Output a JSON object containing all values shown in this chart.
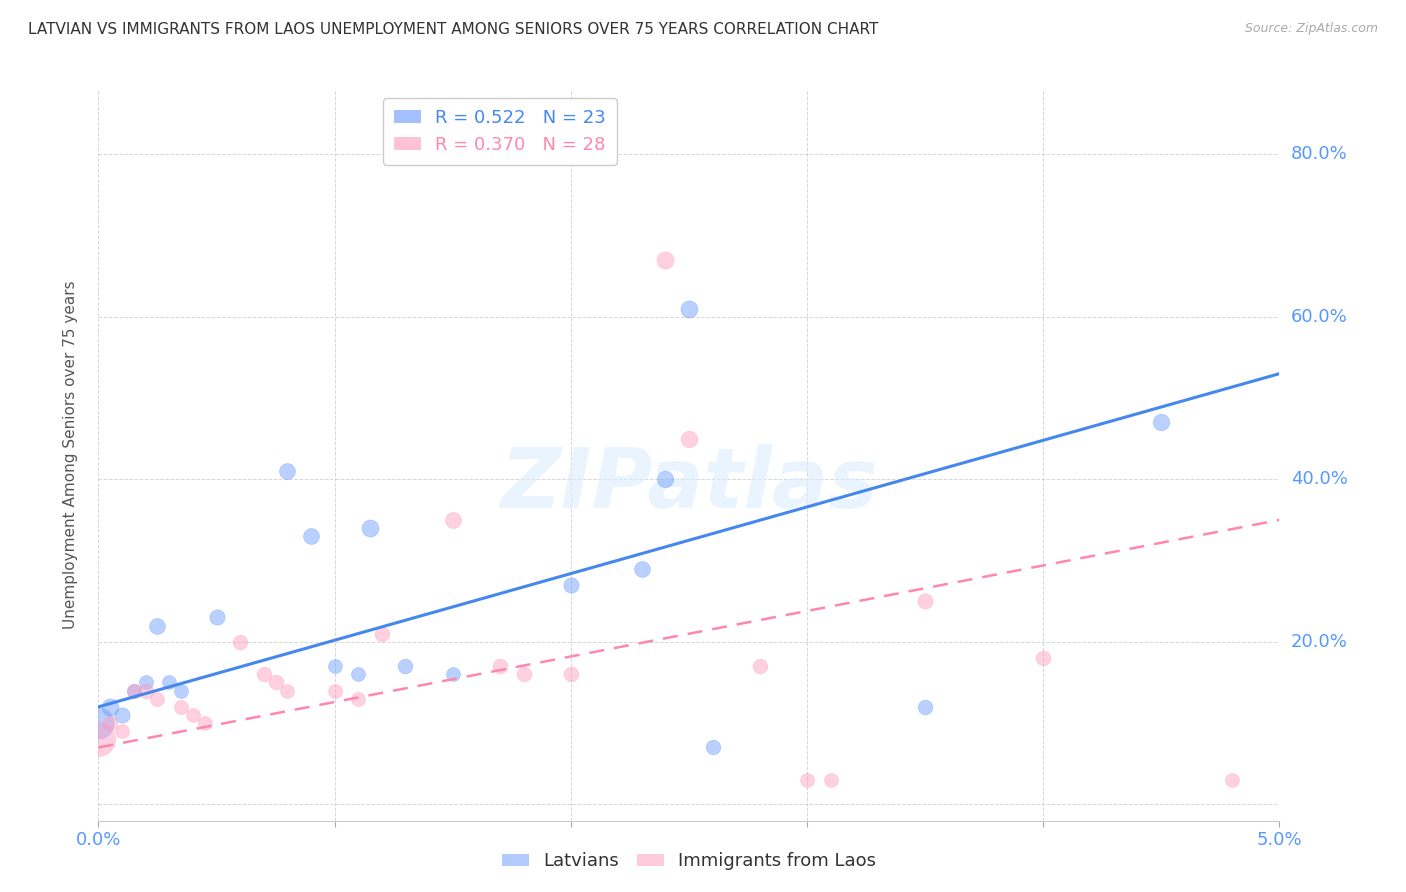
{
  "title": "LATVIAN VS IMMIGRANTS FROM LAOS UNEMPLOYMENT AMONG SENIORS OVER 75 YEARS CORRELATION CHART",
  "source": "Source: ZipAtlas.com",
  "ylabel": "Unemployment Among Seniors over 75 years",
  "xlim": [
    0.0,
    5.0
  ],
  "ylim": [
    -2.0,
    88.0
  ],
  "yticks": [
    0,
    20,
    40,
    60,
    80
  ],
  "ytick_labels": [
    "",
    "20.0%",
    "40.0%",
    "60.0%",
    "80.0%"
  ],
  "xticks": [
    0.0,
    1.0,
    2.0,
    3.0,
    4.0,
    5.0
  ],
  "background_color": "#ffffff",
  "grid_color": "#cccccc",
  "blue_color": "#6699ff",
  "pink_color": "#ff99bb",
  "title_color": "#333333",
  "axis_label_color": "#5599ff",
  "legend_R1": "R = 0.522",
  "legend_N1": "N = 23",
  "legend_R2": "R = 0.370",
  "legend_N2": "N = 28",
  "latvian_points": [
    [
      0.0,
      10.0,
      500
    ],
    [
      0.05,
      12.0,
      150
    ],
    [
      0.1,
      11.0,
      120
    ],
    [
      0.15,
      14.0,
      100
    ],
    [
      0.2,
      15.0,
      100
    ],
    [
      0.25,
      22.0,
      130
    ],
    [
      0.3,
      15.0,
      100
    ],
    [
      0.35,
      14.0,
      100
    ],
    [
      0.5,
      23.0,
      120
    ],
    [
      0.8,
      41.0,
      130
    ],
    [
      0.9,
      33.0,
      130
    ],
    [
      1.0,
      17.0,
      100
    ],
    [
      1.1,
      16.0,
      100
    ],
    [
      1.15,
      34.0,
      150
    ],
    [
      1.3,
      17.0,
      110
    ],
    [
      1.5,
      16.0,
      100
    ],
    [
      2.0,
      27.0,
      120
    ],
    [
      2.3,
      29.0,
      130
    ],
    [
      2.4,
      40.0,
      140
    ],
    [
      2.5,
      61.0,
      150
    ],
    [
      2.6,
      7.0,
      110
    ],
    [
      3.5,
      12.0,
      110
    ],
    [
      4.5,
      47.0,
      140
    ]
  ],
  "laos_points": [
    [
      0.0,
      8.0,
      600
    ],
    [
      0.05,
      10.0,
      110
    ],
    [
      0.1,
      9.0,
      100
    ],
    [
      0.15,
      14.0,
      110
    ],
    [
      0.2,
      14.0,
      110
    ],
    [
      0.25,
      13.0,
      100
    ],
    [
      0.35,
      12.0,
      100
    ],
    [
      0.4,
      11.0,
      100
    ],
    [
      0.45,
      10.0,
      100
    ],
    [
      0.6,
      20.0,
      110
    ],
    [
      0.7,
      16.0,
      110
    ],
    [
      0.75,
      15.0,
      110
    ],
    [
      0.8,
      14.0,
      100
    ],
    [
      1.0,
      14.0,
      100
    ],
    [
      1.1,
      13.0,
      100
    ],
    [
      1.2,
      21.0,
      110
    ],
    [
      1.5,
      35.0,
      130
    ],
    [
      1.7,
      17.0,
      110
    ],
    [
      1.8,
      16.0,
      110
    ],
    [
      2.0,
      16.0,
      110
    ],
    [
      2.4,
      67.0,
      150
    ],
    [
      2.5,
      45.0,
      140
    ],
    [
      2.8,
      17.0,
      110
    ],
    [
      3.0,
      3.0,
      100
    ],
    [
      3.1,
      3.0,
      100
    ],
    [
      3.5,
      25.0,
      120
    ],
    [
      4.0,
      18.0,
      110
    ],
    [
      4.8,
      3.0,
      100
    ]
  ],
  "blue_line_x": [
    0.0,
    5.0
  ],
  "blue_line_y": [
    12.0,
    53.0
  ],
  "pink_line_x": [
    0.0,
    5.0
  ],
  "pink_line_y": [
    7.0,
    35.0
  ],
  "watermark": "ZIPatlas",
  "watermark_color": "#ccddff",
  "watermark_fontsize": 60
}
